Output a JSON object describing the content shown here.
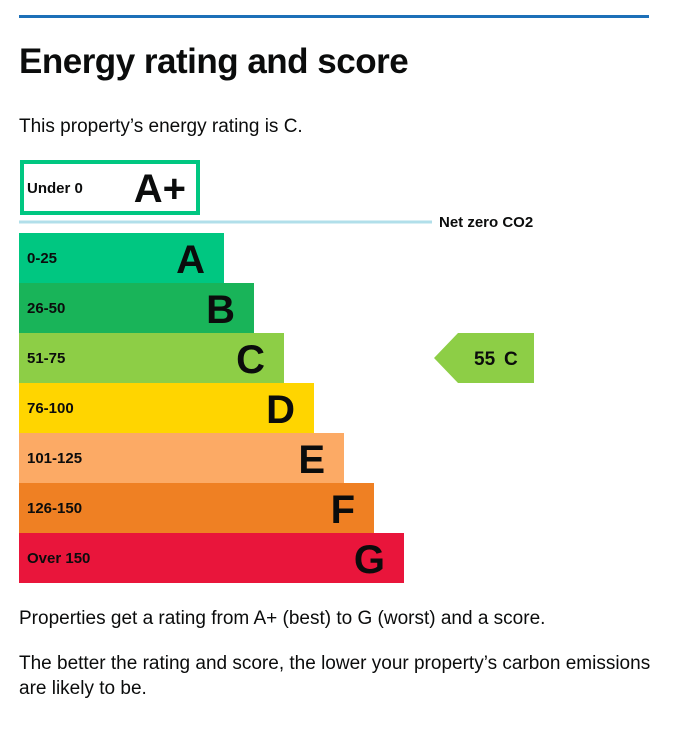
{
  "heading": "Energy rating and score",
  "intro": "This property’s energy rating is C.",
  "footer": {
    "para1": "Properties get a rating from A+ (best) to G (worst) and a score.",
    "para2": "The better the rating and score, the lower your property’s carbon emissions are likely to be."
  },
  "colors": {
    "rule": "#1d70b8",
    "aplus_border": "#00c781",
    "netzero_line": "#b1dfea"
  },
  "chart_data": {
    "type": "bar",
    "orientation": "horizontal",
    "categories": [
      "A+",
      "A",
      "B",
      "C",
      "D",
      "E",
      "F",
      "G"
    ],
    "bands": [
      {
        "letter": "A+",
        "range": "Under 0",
        "color": "#ffffff",
        "outlined": true
      },
      {
        "letter": "A",
        "range": "0-25",
        "color": "#00c781"
      },
      {
        "letter": "B",
        "range": "26-50",
        "color": "#19b459"
      },
      {
        "letter": "C",
        "range": "51-75",
        "color": "#8dce46"
      },
      {
        "letter": "D",
        "range": "76-100",
        "color": "#ffd500"
      },
      {
        "letter": "E",
        "range": "101-125",
        "color": "#fcaa65"
      },
      {
        "letter": "F",
        "range": "126-150",
        "color": "#ef8023"
      },
      {
        "letter": "G",
        "range": "Over 150",
        "color": "#e9153b"
      }
    ],
    "reference_line": {
      "label": "Net zero CO2",
      "after_band": "A+"
    },
    "current": {
      "score": "55",
      "letter": "C",
      "band": "C",
      "color": "#8dce46"
    }
  }
}
